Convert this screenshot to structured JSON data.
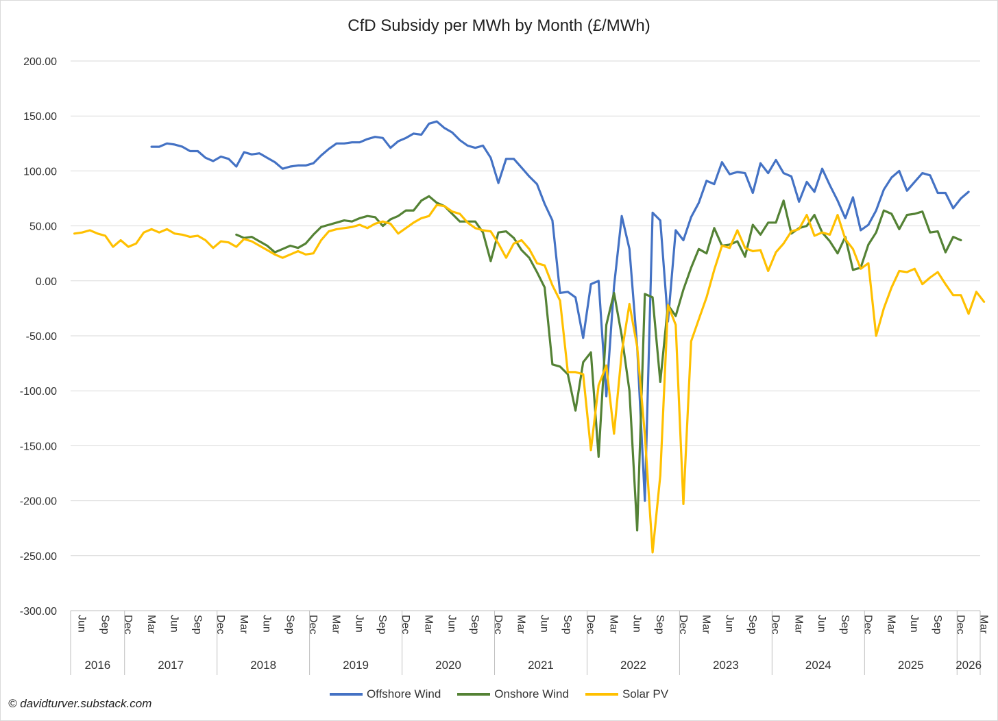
{
  "chart_data": {
    "type": "line",
    "title": "CfD Subsidy per MWh by Month (£/MWh)",
    "xlabel": "",
    "ylabel": "",
    "ylim": [
      -300,
      200
    ],
    "y_ticks": [
      "200.00",
      "150.00",
      "100.00",
      "50.00",
      "0.00",
      "-50.00",
      "-100.00",
      "-150.00",
      "-200.00",
      "-250.00",
      "-300.00"
    ],
    "y_tick_values": [
      200,
      150,
      100,
      50,
      0,
      -50,
      -100,
      -150,
      -200,
      -250,
      -300
    ],
    "start_month": "2016-06",
    "end_month": "2026-03",
    "month_tick_labels": [
      "Jun",
      "Sep",
      "Dec",
      "Mar"
    ],
    "years": [
      "2016",
      "2017",
      "2018",
      "2019",
      "2020",
      "2021",
      "2022",
      "2023",
      "2024",
      "2025",
      "2026"
    ],
    "grid": true,
    "legend_position": "bottom",
    "series": [
      {
        "name": "Offshore Wind",
        "color": "#4472C4",
        "start": "2017-04",
        "values": [
          122,
          122,
          125,
          124,
          122,
          118,
          118,
          112,
          109,
          113,
          111,
          104,
          117,
          115,
          116,
          112,
          108,
          102,
          104,
          105,
          105,
          107,
          114,
          120,
          125,
          125,
          126,
          126,
          129,
          131,
          130,
          121,
          127,
          130,
          134,
          133,
          143,
          145,
          139,
          135,
          128,
          123,
          121,
          123,
          112,
          89,
          111,
          111,
          103,
          95,
          88,
          70,
          55,
          -11,
          -10,
          -15,
          -52,
          -3,
          0,
          -105,
          -5,
          59,
          29,
          -60,
          -200,
          62,
          55,
          -37,
          46,
          37,
          58,
          71,
          91,
          88,
          108,
          97,
          99,
          98,
          80,
          107,
          98,
          110,
          98,
          95,
          72,
          90,
          81,
          102,
          87,
          73,
          57,
          76,
          46,
          51,
          64,
          83,
          94,
          100,
          82,
          90,
          98,
          96,
          80,
          80,
          66,
          75,
          81
        ]
      },
      {
        "name": "Onshore Wind",
        "color": "#548235",
        "start": "2018-03",
        "values": [
          42,
          39,
          40,
          36,
          32,
          26,
          29,
          32,
          30,
          34,
          42,
          49,
          51,
          53,
          55,
          54,
          57,
          59,
          58,
          50,
          56,
          59,
          64,
          64,
          73,
          77,
          71,
          68,
          61,
          54,
          54,
          54,
          44,
          18,
          44,
          45,
          39,
          28,
          21,
          8,
          -6,
          -76,
          -78,
          -85,
          -118,
          -74,
          -65,
          -160,
          -40,
          -11,
          -50,
          -100,
          -227,
          -12,
          -15,
          -92,
          -22,
          -32,
          -8,
          12,
          29,
          25,
          48,
          32,
          33,
          36,
          22,
          51,
          42,
          53,
          53,
          73,
          43,
          48,
          50,
          60,
          44,
          36,
          25,
          40,
          10,
          12,
          33,
          44,
          64,
          61,
          47,
          60,
          61,
          63,
          44,
          45,
          26,
          40,
          37
        ]
      },
      {
        "name": "Solar PV",
        "color": "#FFC000",
        "start": "2016-06",
        "values": [
          43,
          44,
          46,
          43,
          41,
          31,
          37,
          31,
          34,
          44,
          47,
          44,
          47,
          43,
          42,
          40,
          41,
          37,
          30,
          36,
          35,
          31,
          38,
          36,
          32,
          28,
          24,
          21,
          24,
          27,
          24,
          25,
          37,
          45,
          47,
          48,
          49,
          51,
          48,
          52,
          54,
          52,
          43,
          48,
          53,
          57,
          59,
          69,
          68,
          63,
          61,
          53,
          48,
          46,
          45,
          34,
          21,
          34,
          37,
          29,
          16,
          14,
          -4,
          -18,
          -83,
          -83,
          -85,
          -154,
          -95,
          -77,
          -139,
          -65,
          -21,
          -60,
          -140,
          -247,
          -177,
          -22,
          -40,
          -203,
          -55,
          -35,
          -15,
          10,
          32,
          30,
          46,
          30,
          27,
          28,
          9,
          26,
          34,
          45,
          47,
          60,
          41,
          44,
          42,
          60,
          38,
          29,
          11,
          16,
          -50,
          -25,
          -6,
          9,
          8,
          11,
          -3,
          3,
          8,
          -3,
          -13,
          -13,
          -30,
          -10,
          -19
        ]
      }
    ]
  },
  "legend": {
    "offshore": "Offshore Wind",
    "onshore": "Onshore Wind",
    "solar": "Solar PV"
  },
  "footer": {
    "copyright": "© davidturver.substack.com"
  }
}
